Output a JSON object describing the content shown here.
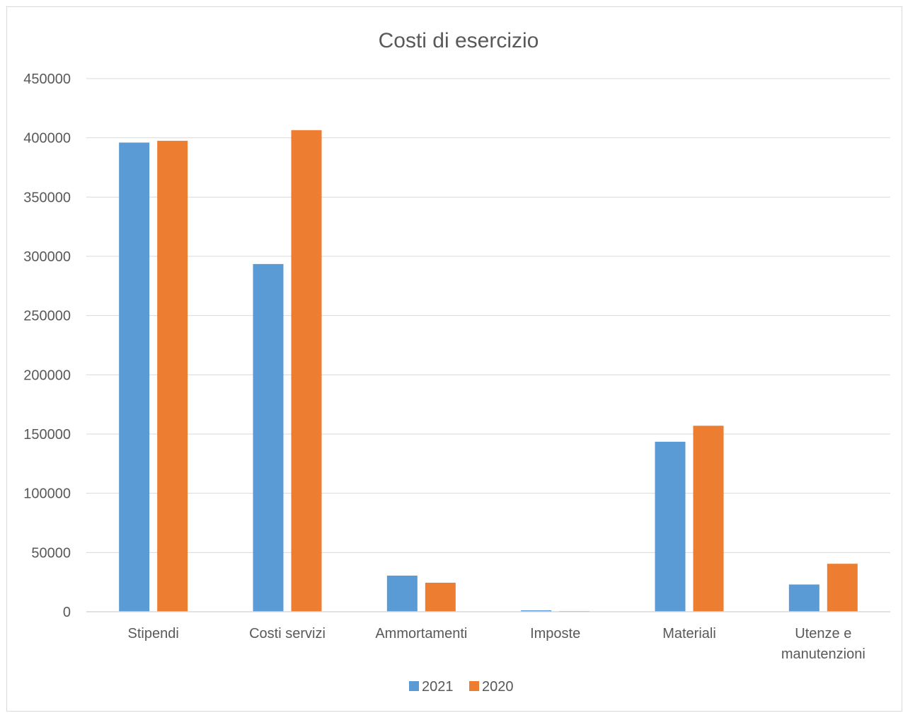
{
  "chart_data": {
    "type": "bar",
    "title": "Costi di esercizio",
    "categories": [
      [
        "Stipendi"
      ],
      [
        "Costi servizi"
      ],
      [
        "Ammortamenti"
      ],
      [
        "Imposte"
      ],
      [
        "Materiali"
      ],
      [
        "Utenze e",
        "manutenzioni"
      ]
    ],
    "series": [
      {
        "name": "2021",
        "color": "#5b9bd5",
        "values": [
          396000,
          293500,
          30500,
          1200,
          143500,
          23000
        ]
      },
      {
        "name": "2020",
        "color": "#ed7d31",
        "values": [
          397500,
          406500,
          24500,
          600,
          157000,
          40500
        ]
      }
    ],
    "ylim": [
      0,
      450000
    ],
    "yticks": [
      "0",
      "50000",
      "100000",
      "150000",
      "200000",
      "250000",
      "300000",
      "350000",
      "400000",
      "450000"
    ],
    "grid": true,
    "legend_position": "bottom"
  }
}
